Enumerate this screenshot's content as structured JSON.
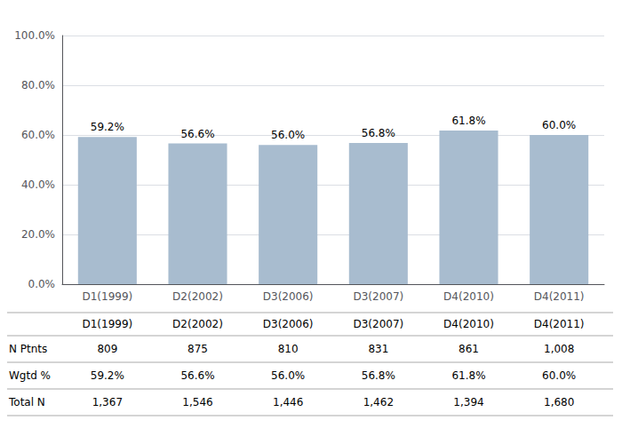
{
  "chart_data": {
    "type": "bar",
    "categories": [
      "D1(1999)",
      "D2(2002)",
      "D3(2006)",
      "D3(2007)",
      "D4(2010)",
      "D4(2011)"
    ],
    "values": [
      59.2,
      56.6,
      56.0,
      56.8,
      61.8,
      60.0
    ],
    "value_labels": [
      "59.2%",
      "56.6%",
      "56.0%",
      "56.8%",
      "61.8%",
      "60.0%"
    ],
    "data_labels": true,
    "color": "#a8bccf",
    "ylim": [
      0,
      100
    ],
    "yticks": [
      {
        "value": 0,
        "label": "0.0%"
      },
      {
        "value": 20,
        "label": "20.0%"
      },
      {
        "value": 40,
        "label": "40.0%"
      },
      {
        "value": 60,
        "label": "60.0%"
      },
      {
        "value": 80,
        "label": "80.0%"
      },
      {
        "value": 100,
        "label": "100.0%"
      }
    ],
    "grid": true,
    "table": [
      {
        "label": "N Ptnts",
        "values": [
          809,
          875,
          810,
          831,
          861,
          1008
        ],
        "value_labels": [
          "809",
          "875",
          "810",
          "831",
          "861",
          "1,008"
        ]
      },
      {
        "label": "Wgtd %",
        "values": [
          59.2,
          56.6,
          56.0,
          56.8,
          61.8,
          60.0
        ],
        "value_labels": [
          "59.2%",
          "56.6%",
          "56.0%",
          "56.8%",
          "61.8%",
          "60.0%"
        ]
      },
      {
        "label": "Total N",
        "values": [
          1367,
          1546,
          1446,
          1462,
          1394,
          1680
        ],
        "value_labels": [
          "1,367",
          "1,546",
          "1,446",
          "1,462",
          "1,394",
          "1,680"
        ]
      }
    ]
  }
}
